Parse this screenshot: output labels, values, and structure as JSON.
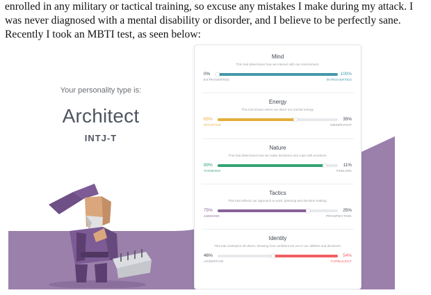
{
  "document": {
    "lines": [
      "enrolled in any military or tactical training, so excuse any mistakes I make during my attack. I",
      "was never diagnosed with a mental disability or disorder, and I believe to be perfectly sane.",
      "Recently I took an MBTI test, as seen below:"
    ]
  },
  "result": {
    "label": "Your personality type is:",
    "type_name": "Architect",
    "type_code": "INTJ-T"
  },
  "traits": [
    {
      "title": "Mind",
      "description": "This trait determines how we interact with our environment.",
      "left_pct": "0%",
      "right_pct": "100%",
      "left_label": "EXTRAVERTED",
      "right_label": "INTROVERTED",
      "fill_start": 0.0,
      "fill_end": 1.0,
      "fill_color": "#4598a8",
      "dominant": "right"
    },
    {
      "title": "Energy",
      "description": "This trait shows where we direct our mental energy.",
      "left_pct": "65%",
      "right_pct": "35%",
      "left_label": "INTUITIVE",
      "right_label": "OBSERVANT",
      "fill_start": 0.0,
      "fill_end": 0.65,
      "fill_color": "#e4ae3a",
      "dominant": "left"
    },
    {
      "title": "Nature",
      "description": "This trait determines how we make decisions and cope with emotions.",
      "left_pct": "89%",
      "right_pct": "11%",
      "left_label": "THINKING",
      "right_label": "FEELING",
      "fill_start": 0.0,
      "fill_end": 0.89,
      "fill_color": "#33a474",
      "dominant": "left"
    },
    {
      "title": "Tactics",
      "description": "This trait reflects our approach to work, planning and decision-making.",
      "left_pct": "75%",
      "right_pct": "25%",
      "left_label": "JUDGING",
      "right_label": "PROSPECTING",
      "fill_start": 0.0,
      "fill_end": 0.75,
      "fill_color": "#88619a",
      "dominant": "left"
    },
    {
      "title": "Identity",
      "description": "This trait underpins all others, showing how confident we are in our abilities and decisions.",
      "left_pct": "46%",
      "right_pct": "54%",
      "left_label": "ASSERTIVE",
      "right_label": "TURBULENT",
      "fill_start": 0.46,
      "fill_end": 1.0,
      "fill_color": "#f25e62",
      "dominant": "right"
    }
  ],
  "colors": {
    "accent_purple": "#88619a",
    "muted_text": "#9a9ea6"
  }
}
